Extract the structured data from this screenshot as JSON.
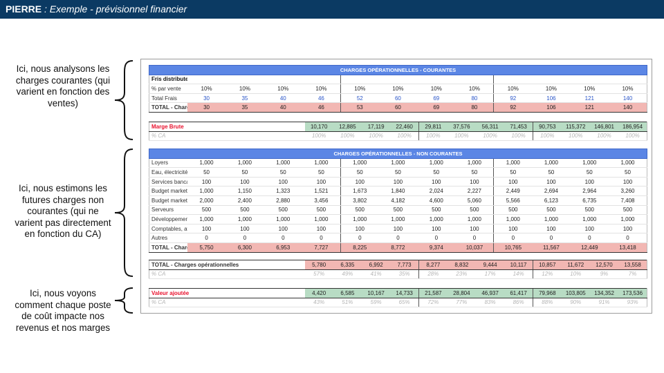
{
  "header": {
    "brand": "PIERRE",
    "subtitle": ": Exemple - prévisionnel financier"
  },
  "annotations": [
    {
      "text": "Ici, nous analysons les charges courantes (qui varient en fonction des ventes)"
    },
    {
      "text": "Ici, nous estimons les futures charges non courantes (qui ne varient pas directement en fonction du CA)"
    },
    {
      "text": "Ici, nous voyons comment chaque poste de coût impacte nos revenus et nos marges"
    }
  ],
  "courantes": {
    "title": "CHARGES OPÉRATIONNELLES - COURANTES",
    "rows": [
      {
        "label": "Fris distributeurs",
        "values": [
          "",
          "",
          "",
          "",
          "",
          "",
          "",
          "",
          "",
          "",
          "",
          ""
        ]
      },
      {
        "label": "% par vente",
        "values": [
          "10%",
          "10%",
          "10%",
          "10%",
          "10%",
          "10%",
          "10%",
          "10%",
          "10%",
          "10%",
          "10%",
          "10%"
        ]
      },
      {
        "label": "Total Frais",
        "values": [
          "30",
          "35",
          "40",
          "46",
          "52",
          "60",
          "69",
          "80",
          "92",
          "106",
          "121",
          "140"
        ]
      },
      {
        "label": "TOTAL - Charges Courantes",
        "values": [
          "30",
          "35",
          "40",
          "46",
          "53",
          "60",
          "69",
          "80",
          "92",
          "106",
          "121",
          "140"
        ]
      }
    ]
  },
  "marge": {
    "label": "Marge Brute",
    "values": [
      "10,170",
      "12,885",
      "17,119",
      "22,460",
      "29,811",
      "37,576",
      "56,311",
      "71,453",
      "90,753",
      "115,372",
      "146,801",
      "186,954"
    ],
    "pct_label": "% CA",
    "pct": [
      "100%",
      "100%",
      "100%",
      "100%",
      "100%",
      "100%",
      "100%",
      "100%",
      "100%",
      "100%",
      "100%",
      "100%"
    ]
  },
  "non_courantes": {
    "title": "CHARGES OPÉRATIONNELLES - NON COURANTES",
    "rows": [
      {
        "label": "Loyers",
        "values": [
          "1,000",
          "1,000",
          "1,000",
          "1,000",
          "1,000",
          "1,000",
          "1,000",
          "1,000",
          "1,000",
          "1,000",
          "1,000",
          "1,000"
        ]
      },
      {
        "label": "Eau, électricité, gaz, téléphone, internet",
        "values": [
          "50",
          "50",
          "50",
          "50",
          "50",
          "50",
          "50",
          "50",
          "50",
          "50",
          "50",
          "50"
        ]
      },
      {
        "label": "Services bancaires",
        "values": [
          "100",
          "100",
          "100",
          "100",
          "100",
          "100",
          "100",
          "100",
          "100",
          "100",
          "100",
          "100"
        ]
      },
      {
        "label": "Budget marketing - offline",
        "values": [
          "1,000",
          "1,150",
          "1,323",
          "1,521",
          "1,673",
          "1,840",
          "2,024",
          "2,227",
          "2,449",
          "2,694",
          "2,964",
          "3,260"
        ]
      },
      {
        "label": "Budget marketing - online",
        "values": [
          "2,000",
          "2,400",
          "2,880",
          "3,456",
          "3,802",
          "4,182",
          "4,600",
          "5,060",
          "5,566",
          "6,123",
          "6,735",
          "7,408"
        ]
      },
      {
        "label": "Serveurs",
        "values": [
          "500",
          "500",
          "500",
          "500",
          "500",
          "500",
          "500",
          "500",
          "500",
          "500",
          "500",
          "500"
        ]
      },
      {
        "label": "Développement App",
        "values": [
          "1,000",
          "1,000",
          "1,000",
          "1,000",
          "1,000",
          "1,000",
          "1,000",
          "1,000",
          "1,000",
          "1,000",
          "1,000",
          "1,000"
        ]
      },
      {
        "label": "Comptables, avocats, prestataires",
        "values": [
          "100",
          "100",
          "100",
          "100",
          "100",
          "100",
          "100",
          "100",
          "100",
          "100",
          "100",
          "100"
        ]
      },
      {
        "label": "Autres",
        "values": [
          "0",
          "0",
          "0",
          "0",
          "0",
          "0",
          "0",
          "0",
          "0",
          "0",
          "0",
          "0"
        ]
      },
      {
        "label": "TOTAL - Charges opérationnelles (non courantes)",
        "values": [
          "5,750",
          "6,300",
          "6,953",
          "7,727",
          "8,225",
          "8,772",
          "9,374",
          "10,037",
          "10,765",
          "11,567",
          "12,449",
          "13,418"
        ]
      }
    ]
  },
  "total_ops": {
    "label": "TOTAL - Charges opérationnelles",
    "values": [
      "5,780",
      "6,335",
      "6,992",
      "7,773",
      "8,277",
      "8,832",
      "9,444",
      "10,117",
      "10,857",
      "11,672",
      "12,570",
      "13,558"
    ],
    "pct_label": "% CA",
    "pct": [
      "57%",
      "49%",
      "41%",
      "35%",
      "28%",
      "23%",
      "17%",
      "14%",
      "12%",
      "10%",
      "9%",
      "7%"
    ]
  },
  "valeur": {
    "label": "Valeur ajoutée",
    "values": [
      "4,420",
      "6,585",
      "10,167",
      "14,733",
      "21,587",
      "28,804",
      "46,937",
      "61,417",
      "79,968",
      "103,805",
      "134,352",
      "173,536"
    ],
    "pct_label": "% CA",
    "pct": [
      "43%",
      "51%",
      "59%",
      "65%",
      "72%",
      "77%",
      "83%",
      "86%",
      "88%",
      "90%",
      "91%",
      "93%"
    ]
  }
}
